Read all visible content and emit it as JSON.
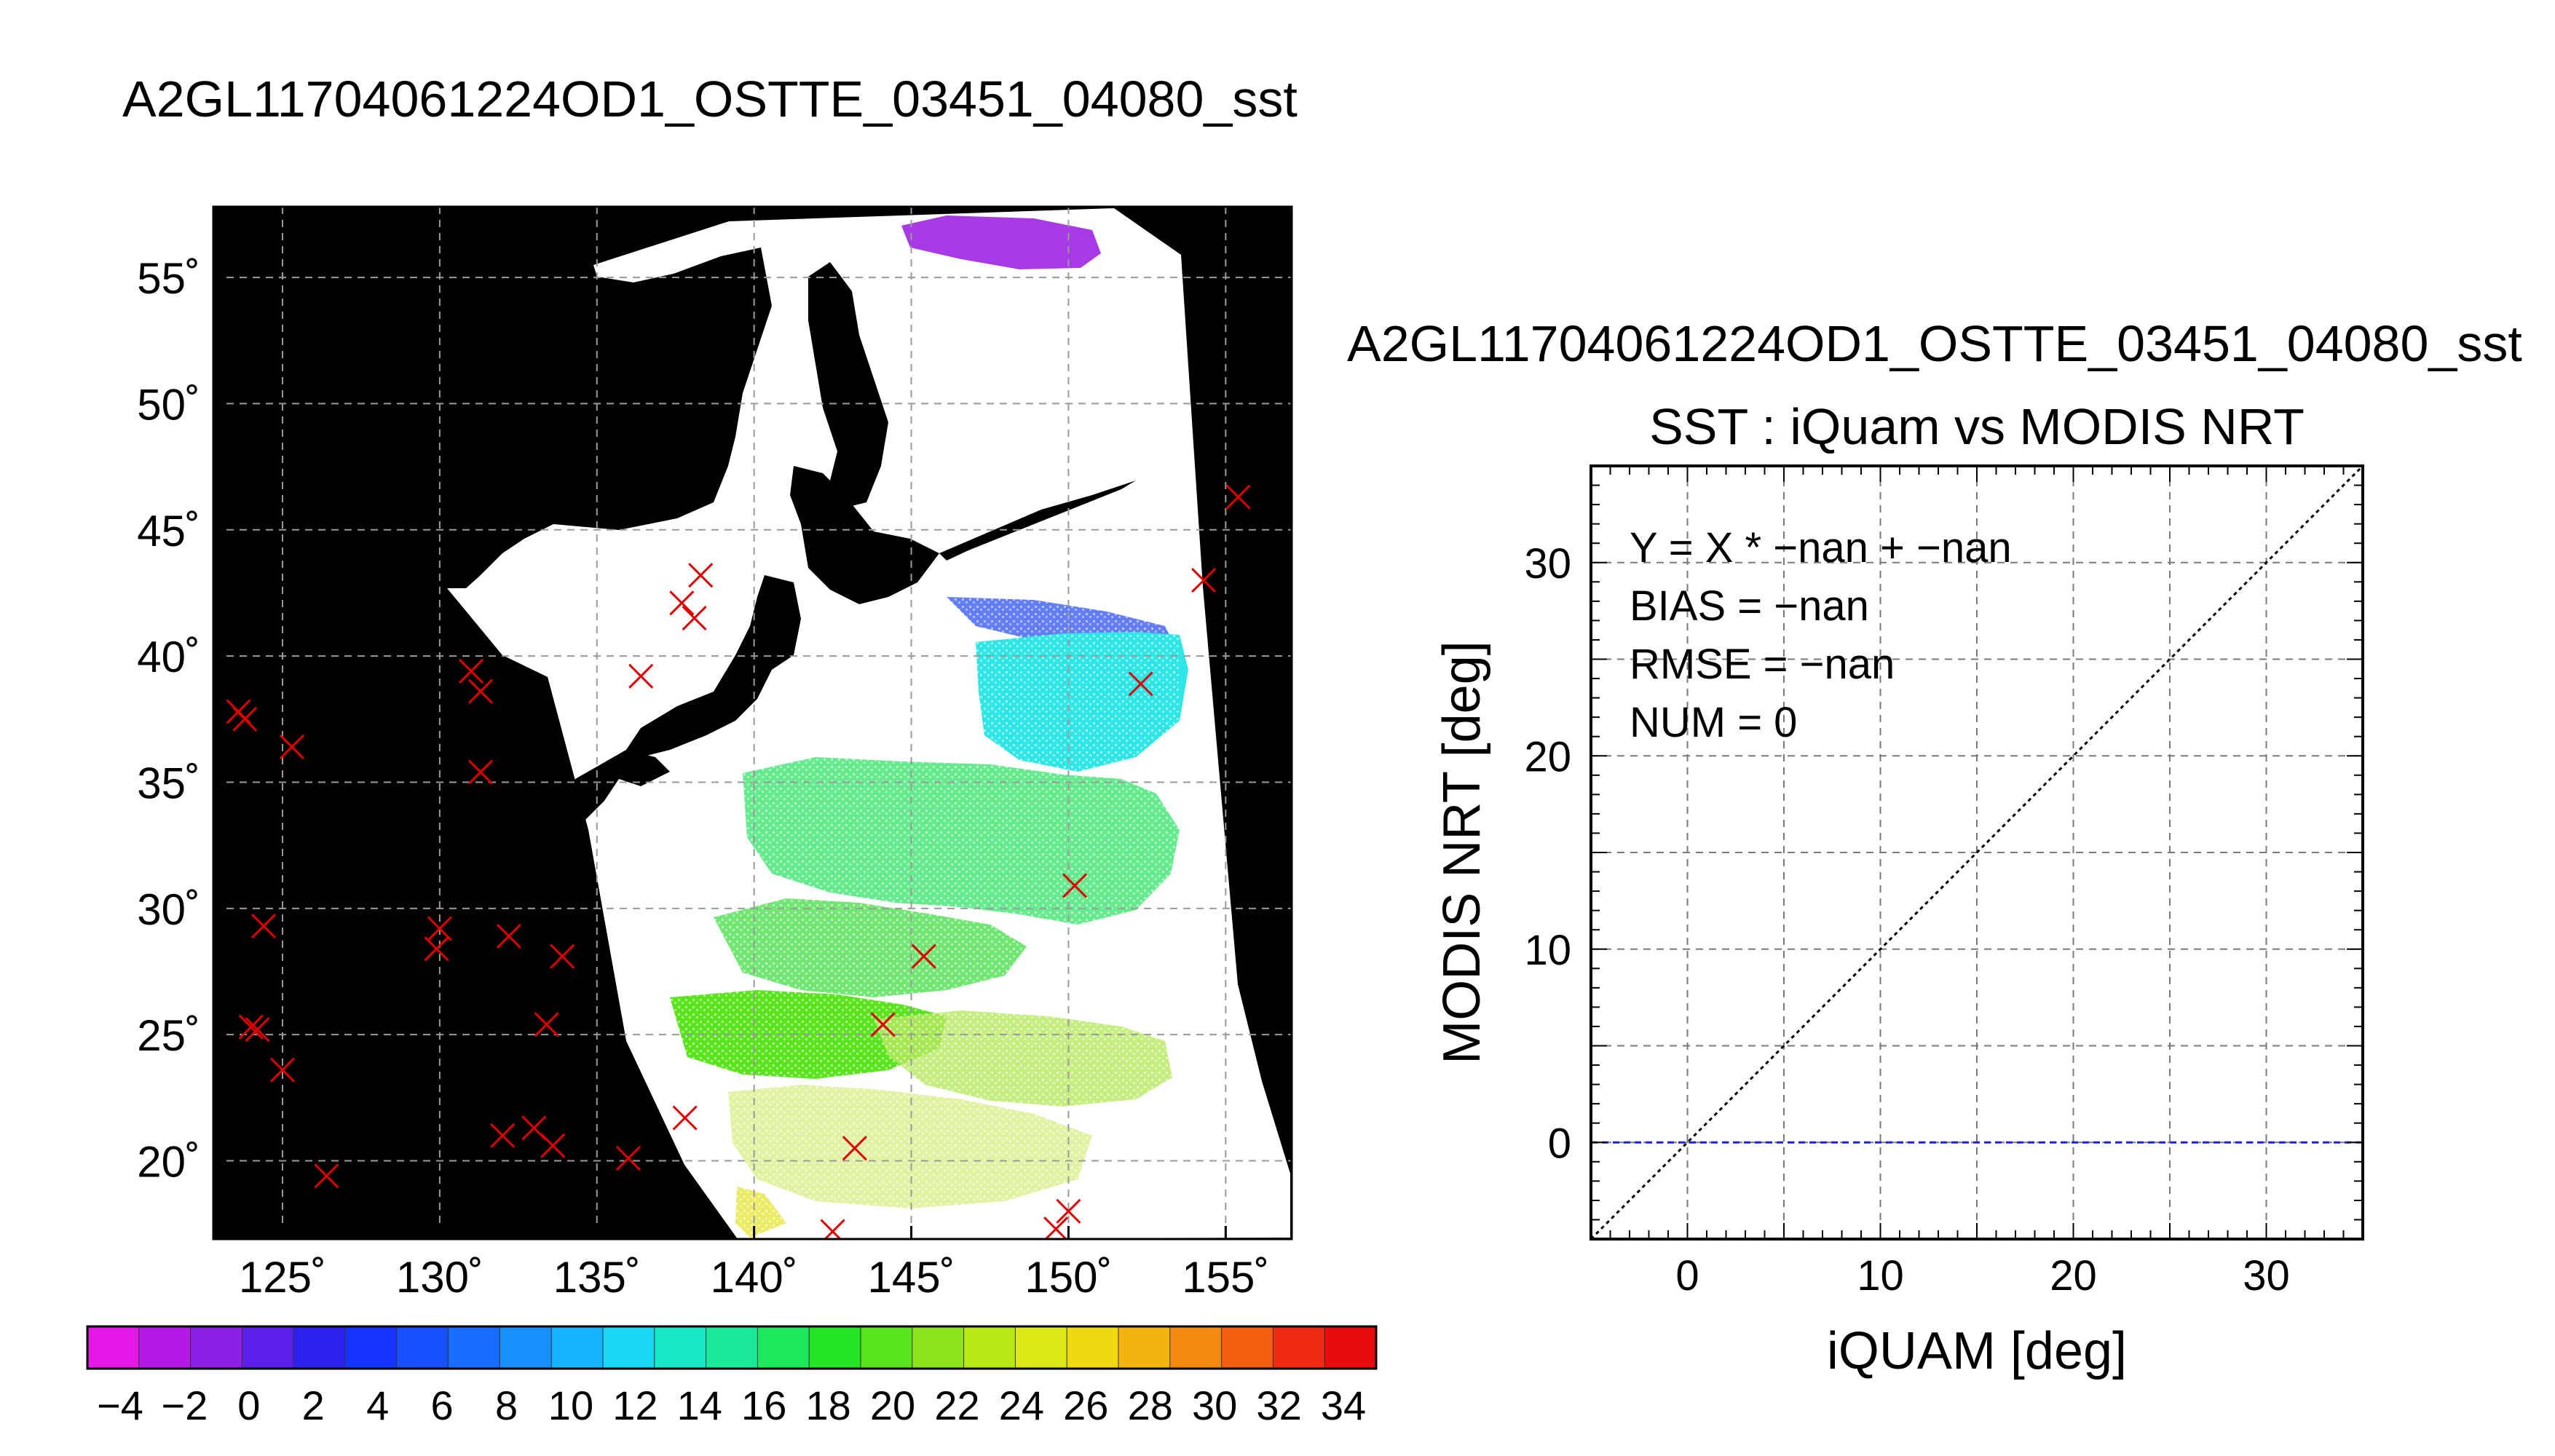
{
  "page": {
    "file_title": "A2GL11704061224OD1_OSTTE_03451_04080_sst"
  },
  "map": {
    "lat_ticks": [
      55,
      50,
      45,
      40,
      35,
      30,
      25,
      20
    ],
    "lon_ticks": [
      125,
      130,
      135,
      140,
      145,
      150,
      155
    ],
    "lat_labels": [
      "55˚",
      "50˚",
      "45˚",
      "40˚",
      "35˚",
      "30˚",
      "25˚",
      "20˚"
    ],
    "lon_labels": [
      "125˚",
      "130˚",
      "135˚",
      "140˚",
      "145˚",
      "150˚",
      "155˚"
    ],
    "lon_range": [
      122.8,
      157.1
    ],
    "lat_range": [
      16.9,
      57.8
    ],
    "colors": {
      "background": "#000000",
      "swath": "#ffffff",
      "land": "#000000",
      "grid": "#9a9a9a",
      "marker": "#e00000"
    },
    "buoy_markers": [
      {
        "lon": 123.6,
        "lat": 37.8
      },
      {
        "lon": 123.8,
        "lat": 37.5
      },
      {
        "lon": 125.3,
        "lat": 36.4
      },
      {
        "lon": 124.4,
        "lat": 29.3
      },
      {
        "lon": 124.0,
        "lat": 25.3
      },
      {
        "lon": 124.2,
        "lat": 25.2
      },
      {
        "lon": 125.0,
        "lat": 23.6
      },
      {
        "lon": 126.4,
        "lat": 19.4
      },
      {
        "lon": 131.0,
        "lat": 39.4
      },
      {
        "lon": 131.3,
        "lat": 38.6
      },
      {
        "lon": 131.3,
        "lat": 35.4
      },
      {
        "lon": 130.0,
        "lat": 29.2
      },
      {
        "lon": 129.9,
        "lat": 28.4
      },
      {
        "lon": 132.2,
        "lat": 28.9
      },
      {
        "lon": 133.9,
        "lat": 28.1
      },
      {
        "lon": 133.4,
        "lat": 25.4
      },
      {
        "lon": 132.0,
        "lat": 21.0
      },
      {
        "lon": 133.0,
        "lat": 21.3
      },
      {
        "lon": 133.6,
        "lat": 20.6
      },
      {
        "lon": 136.0,
        "lat": 20.1
      },
      {
        "lon": 137.8,
        "lat": 21.7
      },
      {
        "lon": 136.4,
        "lat": 39.2
      },
      {
        "lon": 137.7,
        "lat": 42.1
      },
      {
        "lon": 138.1,
        "lat": 41.5
      },
      {
        "lon": 138.3,
        "lat": 43.2
      },
      {
        "lon": 143.2,
        "lat": 20.5
      },
      {
        "lon": 142.5,
        "lat": 17.2
      },
      {
        "lon": 144.1,
        "lat": 25.4
      },
      {
        "lon": 145.4,
        "lat": 28.1
      },
      {
        "lon": 150.2,
        "lat": 30.9
      },
      {
        "lon": 150.0,
        "lat": 18.0
      },
      {
        "lon": 149.6,
        "lat": 17.3
      },
      {
        "lon": 152.3,
        "lat": 38.9
      },
      {
        "lon": 154.3,
        "lat": 43.0
      },
      {
        "lon": 155.4,
        "lat": 46.3
      }
    ]
  },
  "colorbar": {
    "labels": [
      "−4",
      "−2",
      "0",
      "2",
      "4",
      "6",
      "8",
      "10",
      "12",
      "14",
      "16",
      "18",
      "20",
      "22",
      "24",
      "26",
      "28",
      "30",
      "32",
      "34"
    ],
    "colors": [
      "#e418e8",
      "#b41ae6",
      "#8c1ee6",
      "#5a1fe8",
      "#2b22ee",
      "#1634ff",
      "#1850ff",
      "#186dff",
      "#1890ff",
      "#15b4ff",
      "#18d6f4",
      "#18e8c8",
      "#1ce89a",
      "#1de85c",
      "#24e426",
      "#5ae41e",
      "#8ee41a",
      "#b8e818",
      "#dce816",
      "#f0d812",
      "#f4b410",
      "#f48a10",
      "#f45e10",
      "#f02a14",
      "#e80c0c"
    ]
  },
  "scatter": {
    "title": "A2GL11704061224OD1_OSTTE_03451_04080_sst",
    "subtitle": "SST : iQuam vs MODIS NRT",
    "xlabel": "iQUAM [deg]",
    "ylabel": "MODIS NRT [deg]",
    "stats": [
      "Y = X * −nan + −nan",
      "BIAS = −nan",
      "RMSE = −nan",
      "NUM = 0"
    ],
    "x_ticks": [
      "0",
      "10",
      "20",
      "30"
    ],
    "y_ticks": [
      "0",
      "10",
      "20",
      "30"
    ]
  },
  "chart_data": {
    "type": "scatter",
    "title": "SST : iQuam vs MODIS NRT",
    "xlabel": "iQUAM [deg]",
    "ylabel": "MODIS NRT [deg]",
    "xlim": [
      -5,
      35
    ],
    "ylim": [
      -5,
      35
    ],
    "grid": true,
    "series": [],
    "reference_lines": [
      {
        "kind": "identity",
        "style": "dotted",
        "color": "#000000",
        "from": [
          -5,
          -5
        ],
        "to": [
          35,
          35
        ]
      },
      {
        "kind": "horizontal",
        "style": "dashed",
        "color": "#2222cc",
        "y": 0
      }
    ],
    "points": []
  }
}
